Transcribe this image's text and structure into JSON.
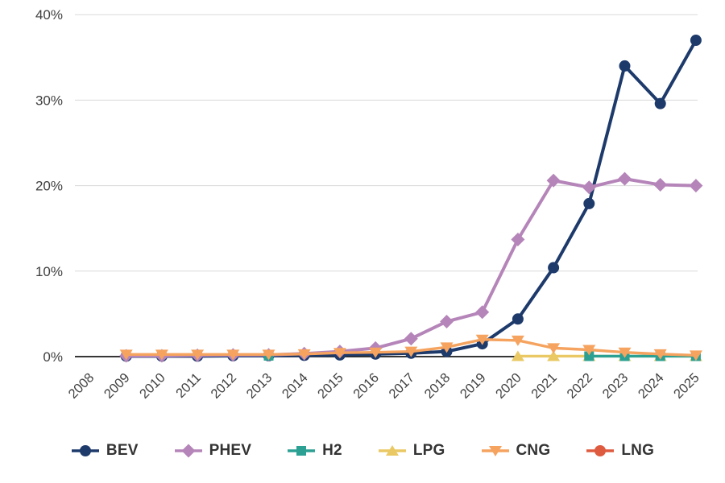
{
  "page": {
    "background": "#ffffff"
  },
  "chart_data": {
    "type": "line",
    "title": "",
    "xlabel": "",
    "ylabel": "",
    "x_tick_labels": [
      "2008",
      "2009",
      "2010",
      "2011",
      "2012",
      "2013",
      "2014",
      "2015",
      "2016",
      "2017",
      "2018",
      "2019",
      "2020",
      "2021",
      "2022",
      "2023",
      "2024",
      "2025"
    ],
    "y_ticks": [
      {
        "value": 0,
        "label": "0%"
      },
      {
        "value": 10,
        "label": "10%"
      },
      {
        "value": 20,
        "label": "20%"
      },
      {
        "value": 30,
        "label": "30%"
      },
      {
        "value": 40,
        "label": "40%"
      }
    ],
    "ylim": [
      0,
      40
    ],
    "grid": "horizontal",
    "grid_color": "#d9d9d9",
    "axis_color": "#1a1a1a",
    "tick_text_color": "#404040",
    "legend_position": "bottom",
    "legend_order": [
      "BEV",
      "PHEV",
      "H2",
      "LPG",
      "CNG",
      "LNG"
    ],
    "draw_order": [
      "BEV",
      "PHEV",
      "LPG",
      "H2",
      "CNG",
      "LNG"
    ],
    "series": [
      {
        "name": "BEV",
        "color": "#1d3a6b",
        "marker": "circle",
        "values": [
          null,
          0.05,
          0.05,
          0.05,
          0.1,
          0.1,
          0.15,
          0.2,
          0.3,
          0.4,
          0.6,
          1.5,
          4.4,
          10.4,
          17.9,
          34.0,
          29.6,
          37.0
        ]
      },
      {
        "name": "PHEV",
        "color": "#b585b9",
        "marker": "diamond",
        "values": [
          null,
          0.1,
          0.1,
          0.15,
          0.2,
          0.2,
          0.35,
          0.6,
          1.0,
          2.1,
          4.1,
          5.2,
          13.7,
          20.6,
          19.8,
          20.8,
          20.1,
          20.0
        ]
      },
      {
        "name": "H2",
        "color": "#2ba093",
        "marker": "square",
        "values": [
          null,
          null,
          null,
          null,
          null,
          0.1,
          null,
          null,
          null,
          null,
          null,
          null,
          null,
          null,
          0.05,
          0.05,
          0.05,
          0.05
        ]
      },
      {
        "name": "LPG",
        "color": "#eac964",
        "marker": "triangle-up",
        "values": [
          null,
          null,
          null,
          null,
          null,
          null,
          null,
          null,
          null,
          null,
          null,
          null,
          0.05,
          0.05,
          0.05,
          0.05,
          0.05,
          0.05
        ]
      },
      {
        "name": "CNG",
        "color": "#f5a35f",
        "marker": "triangle-down",
        "values": [
          null,
          0.25,
          0.25,
          0.25,
          0.25,
          0.25,
          0.3,
          0.45,
          0.5,
          0.6,
          1.1,
          2.0,
          1.9,
          1.0,
          0.8,
          0.5,
          0.3,
          0.15
        ]
      },
      {
        "name": "LNG",
        "color": "#df5b3f",
        "marker": "circle",
        "values": [
          null,
          null,
          null,
          null,
          null,
          null,
          null,
          null,
          null,
          null,
          null,
          null,
          null,
          null,
          null,
          null,
          null,
          null
        ]
      }
    ]
  }
}
